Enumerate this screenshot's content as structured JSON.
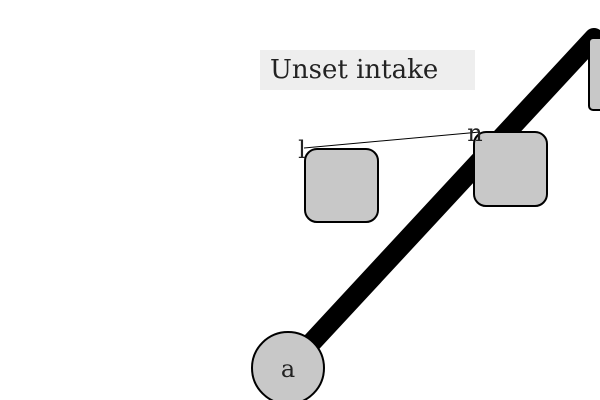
{
  "title": "Unset intake",
  "nodes": {
    "a": {
      "label": "a"
    },
    "l": {
      "label": "l"
    },
    "n": {
      "label": "n"
    }
  },
  "colors": {
    "node_fill": "#c8c8c8",
    "node_stroke": "#000000",
    "edge": "#000000",
    "title_bg": "#eeeeee",
    "text": "#222222"
  }
}
